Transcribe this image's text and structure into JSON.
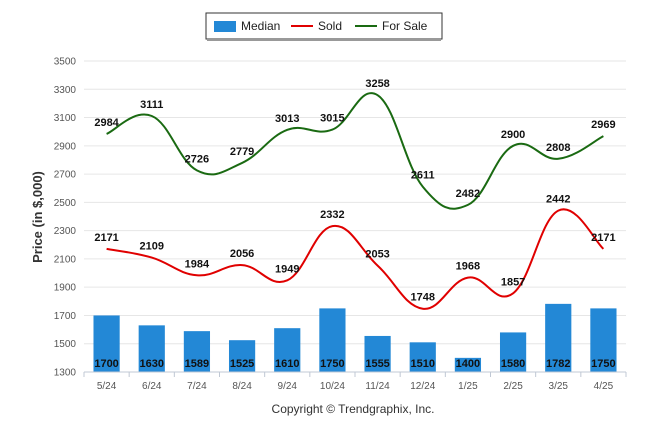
{
  "chart_data": {
    "type": "bar",
    "categories": [
      "5/24",
      "6/24",
      "7/24",
      "8/24",
      "9/24",
      "10/24",
      "11/24",
      "12/24",
      "1/25",
      "2/25",
      "3/25",
      "4/25"
    ],
    "ylabel": "Price (in $,000)",
    "ylim": [
      1300,
      3500
    ],
    "yticks": [
      1300,
      1500,
      1700,
      1900,
      2100,
      2300,
      2500,
      2700,
      2900,
      3100,
      3300,
      3500
    ],
    "grid": true,
    "legend_position": "top-center",
    "series": [
      {
        "name": "Median",
        "type": "bar",
        "color": "#2388d6",
        "values": [
          1700,
          1630,
          1589,
          1525,
          1610,
          1750,
          1555,
          1510,
          1400,
          1580,
          1782,
          1750
        ]
      },
      {
        "name": "Sold",
        "type": "line",
        "color": "#e00000",
        "values": [
          2171,
          2109,
          1984,
          2056,
          1949,
          2332,
          2053,
          1748,
          1968,
          1857,
          2442,
          2171
        ]
      },
      {
        "name": "For Sale",
        "type": "line",
        "color": "#1a6a12",
        "values": [
          2984,
          3111,
          2726,
          2779,
          3013,
          3015,
          3258,
          2611,
          2482,
          2900,
          2808,
          2969
        ]
      }
    ],
    "footer": "Copyright © Trendgraphix, Inc."
  }
}
